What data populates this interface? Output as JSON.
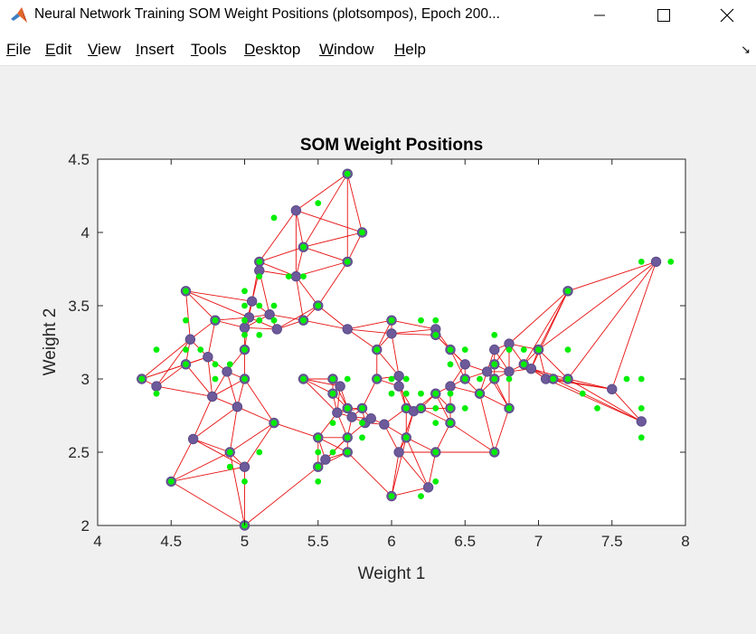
{
  "window": {
    "title": "Neural Network Training SOM Weight Positions (plotsompos), Epoch 200...",
    "controls": [
      "minimize",
      "maximize",
      "close"
    ]
  },
  "menu": {
    "items": [
      {
        "label": "File",
        "ul": "F",
        "rest": "ile"
      },
      {
        "label": "Edit",
        "ul": "E",
        "rest": "dit"
      },
      {
        "label": "View",
        "ul": "V",
        "rest": "iew"
      },
      {
        "label": "Insert",
        "ul": "I",
        "rest": "nsert"
      },
      {
        "label": "Tools",
        "ul": "T",
        "rest": "ools"
      },
      {
        "label": "Desktop",
        "ul": "D",
        "rest": "esktop"
      },
      {
        "label": "Window",
        "ul": "W",
        "rest": "indow"
      },
      {
        "label": "Help",
        "ul": "H",
        "rest": "elp"
      }
    ]
  },
  "colors": {
    "neuron_face": "#6d5a9a",
    "neuron_edge": "#5a4a88",
    "input_green": "#00ee00",
    "connection_red": "#e81010",
    "axes_bg": "#ffffff",
    "figure_bg": "#f0f0f0"
  },
  "chart_data": {
    "type": "scatter",
    "title": "SOM Weight Positions",
    "xlabel": "Weight 1",
    "ylabel": "Weight 2",
    "xlim": [
      4,
      8
    ],
    "ylim": [
      2,
      4.5
    ],
    "xticks": [
      "4",
      "4.5",
      "5",
      "5.5",
      "6",
      "6.5",
      "7",
      "7.5",
      "8"
    ],
    "yticks": [
      "2",
      "2.5",
      "3",
      "3.5",
      "4",
      "4.5"
    ],
    "grid": false,
    "series": [
      {
        "role": "input vectors",
        "marker": "green dot",
        "points": [
          [
            4.3,
            3.0
          ],
          [
            4.4,
            2.9
          ],
          [
            4.4,
            3.2
          ],
          [
            4.5,
            2.3
          ],
          [
            4.6,
            3.1
          ],
          [
            4.6,
            3.2
          ],
          [
            4.6,
            3.4
          ],
          [
            4.6,
            3.6
          ],
          [
            4.7,
            3.2
          ],
          [
            4.8,
            3.0
          ],
          [
            4.8,
            3.1
          ],
          [
            4.8,
            3.4
          ],
          [
            4.9,
            2.4
          ],
          [
            4.9,
            2.5
          ],
          [
            4.9,
            3.1
          ],
          [
            5.0,
            2.0
          ],
          [
            5.0,
            2.3
          ],
          [
            5.0,
            3.0
          ],
          [
            5.0,
            3.2
          ],
          [
            5.0,
            3.3
          ],
          [
            5.0,
            3.4
          ],
          [
            5.0,
            3.5
          ],
          [
            5.0,
            3.6
          ],
          [
            5.1,
            2.5
          ],
          [
            5.1,
            3.3
          ],
          [
            5.1,
            3.4
          ],
          [
            5.1,
            3.5
          ],
          [
            5.1,
            3.7
          ],
          [
            5.1,
            3.8
          ],
          [
            5.2,
            2.7
          ],
          [
            5.2,
            3.4
          ],
          [
            5.2,
            3.5
          ],
          [
            5.2,
            4.1
          ],
          [
            5.3,
            3.7
          ],
          [
            5.4,
            3.0
          ],
          [
            5.4,
            3.4
          ],
          [
            5.4,
            3.7
          ],
          [
            5.4,
            3.9
          ],
          [
            5.5,
            2.3
          ],
          [
            5.5,
            2.4
          ],
          [
            5.5,
            2.5
          ],
          [
            5.5,
            2.6
          ],
          [
            5.5,
            3.5
          ],
          [
            5.5,
            4.2
          ],
          [
            5.6,
            2.5
          ],
          [
            5.6,
            2.7
          ],
          [
            5.6,
            2.9
          ],
          [
            5.6,
            3.0
          ],
          [
            5.7,
            2.5
          ],
          [
            5.7,
            2.6
          ],
          [
            5.7,
            2.8
          ],
          [
            5.7,
            3.0
          ],
          [
            5.7,
            3.8
          ],
          [
            5.7,
            4.4
          ],
          [
            5.8,
            2.6
          ],
          [
            5.8,
            2.7
          ],
          [
            5.8,
            2.8
          ],
          [
            5.8,
            4.0
          ],
          [
            5.9,
            3.0
          ],
          [
            5.9,
            3.2
          ],
          [
            6.0,
            2.2
          ],
          [
            6.0,
            2.9
          ],
          [
            6.0,
            3.0
          ],
          [
            6.0,
            3.4
          ],
          [
            6.1,
            2.6
          ],
          [
            6.1,
            2.8
          ],
          [
            6.1,
            2.9
          ],
          [
            6.1,
            3.0
          ],
          [
            6.2,
            2.2
          ],
          [
            6.2,
            2.8
          ],
          [
            6.2,
            2.9
          ],
          [
            6.2,
            3.4
          ],
          [
            6.3,
            2.3
          ],
          [
            6.3,
            2.5
          ],
          [
            6.3,
            2.7
          ],
          [
            6.3,
            2.8
          ],
          [
            6.3,
            2.9
          ],
          [
            6.3,
            3.3
          ],
          [
            6.3,
            3.4
          ],
          [
            6.4,
            2.7
          ],
          [
            6.4,
            2.8
          ],
          [
            6.4,
            2.9
          ],
          [
            6.4,
            3.1
          ],
          [
            6.4,
            3.2
          ],
          [
            6.5,
            2.8
          ],
          [
            6.5,
            3.0
          ],
          [
            6.5,
            3.2
          ],
          [
            6.6,
            2.9
          ],
          [
            6.6,
            3.0
          ],
          [
            6.7,
            2.5
          ],
          [
            6.7,
            3.0
          ],
          [
            6.7,
            3.1
          ],
          [
            6.7,
            3.3
          ],
          [
            6.8,
            2.8
          ],
          [
            6.8,
            3.0
          ],
          [
            6.8,
            3.2
          ],
          [
            6.9,
            3.1
          ],
          [
            6.9,
            3.2
          ],
          [
            7.0,
            3.2
          ],
          [
            7.1,
            3.0
          ],
          [
            7.2,
            3.0
          ],
          [
            7.2,
            3.2
          ],
          [
            7.2,
            3.6
          ],
          [
            7.3,
            2.9
          ],
          [
            7.4,
            2.8
          ],
          [
            7.6,
            3.0
          ],
          [
            7.7,
            2.6
          ],
          [
            7.7,
            2.8
          ],
          [
            7.7,
            3.0
          ],
          [
            7.7,
            3.8
          ],
          [
            7.9,
            3.8
          ]
        ]
      },
      {
        "role": "neuron weights",
        "marker": "purple circle",
        "points": [
          [
            4.3,
            3.0
          ],
          [
            4.4,
            2.95
          ],
          [
            4.5,
            2.3
          ],
          [
            4.6,
            3.6
          ],
          [
            4.6,
            3.1
          ],
          [
            4.63,
            3.27
          ],
          [
            4.65,
            2.59
          ],
          [
            4.75,
            3.15
          ],
          [
            4.78,
            2.88
          ],
          [
            4.8,
            3.4
          ],
          [
            4.88,
            3.05
          ],
          [
            4.9,
            2.5
          ],
          [
            4.95,
            2.81
          ],
          [
            5.0,
            3.0
          ],
          [
            5.0,
            3.2
          ],
          [
            5.0,
            3.35
          ],
          [
            5.0,
            2.4
          ],
          [
            5.0,
            2.0
          ],
          [
            5.03,
            3.42
          ],
          [
            5.05,
            3.53
          ],
          [
            5.1,
            3.8
          ],
          [
            5.1,
            3.74
          ],
          [
            5.17,
            3.44
          ],
          [
            5.2,
            2.7
          ],
          [
            5.22,
            3.34
          ],
          [
            5.35,
            4.15
          ],
          [
            5.35,
            3.7
          ],
          [
            5.4,
            3.0
          ],
          [
            5.4,
            3.4
          ],
          [
            5.4,
            3.9
          ],
          [
            5.5,
            3.5
          ],
          [
            5.5,
            2.6
          ],
          [
            5.5,
            2.4
          ],
          [
            5.55,
            2.45
          ],
          [
            5.6,
            2.9
          ],
          [
            5.6,
            3.0
          ],
          [
            5.63,
            2.77
          ],
          [
            5.65,
            2.95
          ],
          [
            5.7,
            4.4
          ],
          [
            5.7,
            3.8
          ],
          [
            5.7,
            3.34
          ],
          [
            5.7,
            2.8
          ],
          [
            5.7,
            2.6
          ],
          [
            5.7,
            2.5
          ],
          [
            5.73,
            2.74
          ],
          [
            5.8,
            4.0
          ],
          [
            5.8,
            2.8
          ],
          [
            5.82,
            2.7
          ],
          [
            5.86,
            2.73
          ],
          [
            5.9,
            3.2
          ],
          [
            5.9,
            3.0
          ],
          [
            5.95,
            2.69
          ],
          [
            6.0,
            3.4
          ],
          [
            6.0,
            3.31
          ],
          [
            6.0,
            2.2
          ],
          [
            6.05,
            3.02
          ],
          [
            6.05,
            2.95
          ],
          [
            6.05,
            2.5
          ],
          [
            6.1,
            2.8
          ],
          [
            6.1,
            2.6
          ],
          [
            6.15,
            2.78
          ],
          [
            6.2,
            2.8
          ],
          [
            6.25,
            2.26
          ],
          [
            6.3,
            3.34
          ],
          [
            6.3,
            3.3
          ],
          [
            6.3,
            2.9
          ],
          [
            6.3,
            2.5
          ],
          [
            6.4,
            3.2
          ],
          [
            6.4,
            2.95
          ],
          [
            6.4,
            2.8
          ],
          [
            6.4,
            2.7
          ],
          [
            6.5,
            3.1
          ],
          [
            6.5,
            3.0
          ],
          [
            6.6,
            2.9
          ],
          [
            6.65,
            3.05
          ],
          [
            6.7,
            3.2
          ],
          [
            6.7,
            3.1
          ],
          [
            6.7,
            3.0
          ],
          [
            6.7,
            2.5
          ],
          [
            6.8,
            3.24
          ],
          [
            6.8,
            3.05
          ],
          [
            6.8,
            2.8
          ],
          [
            6.9,
            3.1
          ],
          [
            6.95,
            3.07
          ],
          [
            7.0,
            3.2
          ],
          [
            7.05,
            3.0
          ],
          [
            7.1,
            3.0
          ],
          [
            7.2,
            3.6
          ],
          [
            7.2,
            3.0
          ],
          [
            7.5,
            2.93
          ],
          [
            7.7,
            2.71
          ],
          [
            7.8,
            3.8
          ]
        ]
      }
    ],
    "connections": "red line segments joining neighboring neurons (edge count approximate)"
  }
}
